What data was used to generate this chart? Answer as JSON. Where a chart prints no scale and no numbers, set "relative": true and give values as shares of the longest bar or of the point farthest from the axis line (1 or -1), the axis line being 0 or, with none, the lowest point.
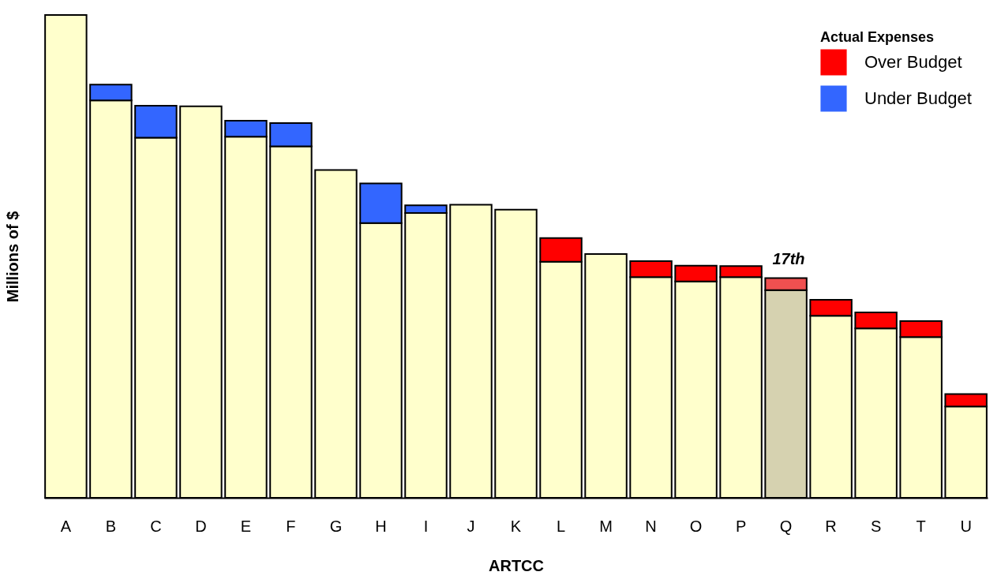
{
  "chart_data": {
    "type": "bar",
    "stacked": true,
    "relative": true,
    "xlabel": "ARTCC",
    "ylabel": "Millions of $",
    "legend_title": "Actual Expenses",
    "legend": "top right",
    "categories": [
      "A",
      "B",
      "C",
      "D",
      "E",
      "F",
      "G",
      "H",
      "I",
      "J",
      "K",
      "L",
      "M",
      "N",
      "O",
      "P",
      "Q",
      "R",
      "S",
      "T",
      "U"
    ],
    "series": [
      {
        "color": "#ffffcc",
        "colors": [
          null,
          null,
          null,
          null,
          null,
          null,
          null,
          null,
          null,
          null,
          null,
          null,
          null,
          null,
          null,
          null,
          "#d6d2b0",
          null,
          null,
          null,
          null
        ],
        "values": [
          1.0,
          0.823,
          0.746,
          0.811,
          0.748,
          0.728,
          0.679,
          0.569,
          0.59,
          0.607,
          0.597,
          0.489,
          0.505,
          0.457,
          0.448,
          0.457,
          0.43,
          0.377,
          0.351,
          0.333,
          0.189
        ]
      },
      {
        "name": "Over Budget",
        "color": "#ff0000",
        "colors": [
          null,
          null,
          null,
          null,
          null,
          null,
          null,
          null,
          null,
          null,
          null,
          null,
          null,
          null,
          null,
          null,
          "#f05050",
          null,
          null,
          null,
          null
        ],
        "values": [
          null,
          null,
          null,
          null,
          null,
          null,
          null,
          null,
          null,
          null,
          null,
          0.049,
          null,
          0.033,
          0.033,
          0.023,
          0.025,
          0.033,
          0.033,
          0.033,
          0.026
        ]
      },
      {
        "name": "Under Budget",
        "color": "#3366ff",
        "values": [
          null,
          0.033,
          0.066,
          null,
          0.033,
          0.048,
          null,
          0.082,
          0.016,
          null,
          null,
          null,
          null,
          null,
          null,
          null,
          null,
          null,
          null,
          null,
          null
        ]
      }
    ],
    "annotations": [
      "17th"
    ]
  }
}
